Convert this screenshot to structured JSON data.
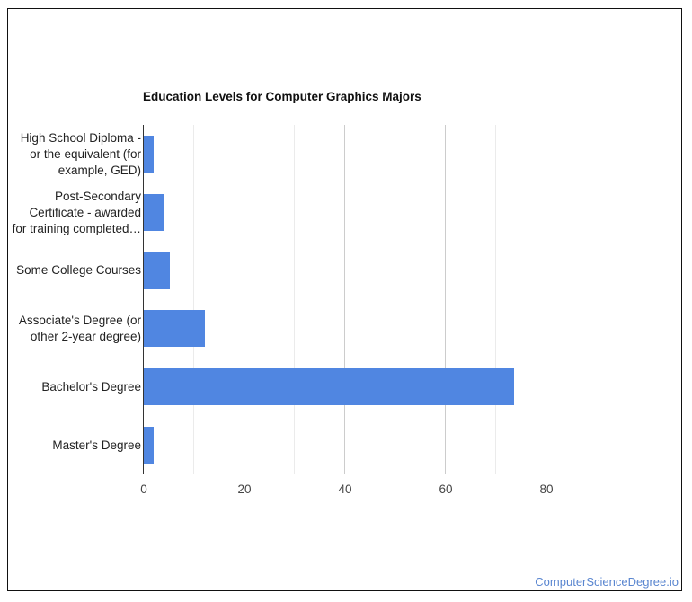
{
  "chart_data": {
    "type": "bar",
    "orientation": "horizontal",
    "title": "Education Levels for Computer Graphics Majors",
    "categories": [
      "High School Diploma - or the equivalent (for example, GED)",
      "Post-Secondary Certificate - awarded for training completed…",
      "Some College Courses",
      "Associate's Degree (or other 2-year degree)",
      "Bachelor's Degree",
      "Master's Degree"
    ],
    "values": [
      2.1,
      4.1,
      5.4,
      12.4,
      73.8,
      2.2
    ],
    "xlabel": "",
    "ylabel": "",
    "xlim": [
      0,
      85
    ],
    "xticks": [
      0,
      20,
      40,
      60,
      80
    ],
    "grid": true,
    "legend": "none",
    "bar_color": "#5086e1"
  },
  "labels": [
    [
      "High School Diploma -",
      "or the equivalent (for",
      "example, GED)"
    ],
    [
      "Post-Secondary",
      "Certificate - awarded",
      "for training completed…"
    ],
    [
      "Some College Courses"
    ],
    [
      "Associate's Degree (or",
      "other 2-year degree)"
    ],
    [
      "Bachelor's Degree"
    ],
    [
      "Master's Degree"
    ]
  ],
  "xtick_labels": [
    "0",
    "20",
    "40",
    "60",
    "80"
  ],
  "credit": "ComputerScienceDegree.io"
}
